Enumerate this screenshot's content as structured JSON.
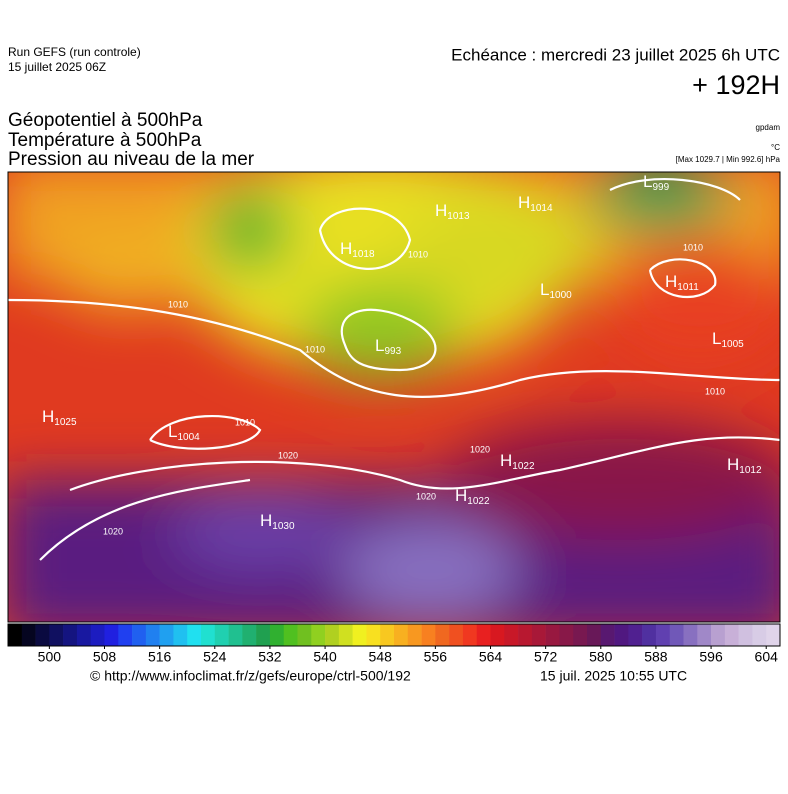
{
  "header": {
    "run": "Run GEFS (run controle)",
    "run_date": "15 juillet 2025 06Z",
    "valid": "Echéance : mercredi 23 juillet 2025 6h UTC",
    "lead": "+ 192H",
    "fields": [
      "Géopotentiel à 500hPa",
      "Température à 500hPa",
      "Pression au niveau de la mer"
    ],
    "units": [
      "gpdam",
      "°C",
      "[Max 1029.7 | Min 992.6] hPa"
    ]
  },
  "map": {
    "centers": [
      {
        "letter": "H",
        "value": "1013"
      },
      {
        "letter": "H",
        "value": "1014"
      },
      {
        "letter": "L",
        "value": "999"
      },
      {
        "letter": "H",
        "value": "1018"
      },
      {
        "letter": "L",
        "value": "993"
      },
      {
        "letter": "H",
        "value": "1011"
      },
      {
        "letter": "L",
        "value": "1005"
      },
      {
        "letter": "L",
        "value": "1004"
      },
      {
        "letter": "H",
        "value": "1025"
      },
      {
        "letter": "H",
        "value": "1022"
      },
      {
        "letter": "H",
        "value": "1022"
      },
      {
        "letter": "H",
        "value": "1030"
      },
      {
        "letter": "H",
        "value": "1012"
      },
      {
        "letter": "L",
        "value": "1000"
      }
    ],
    "contour_labels": [
      "1010",
      "1010",
      "1010",
      "1020",
      "1020",
      "1020",
      "1020",
      "1010",
      "1010",
      "1010"
    ]
  },
  "colorbar": {
    "range": [
      494,
      606
    ],
    "ticks": [
      500,
      508,
      516,
      524,
      532,
      540,
      548,
      556,
      564,
      572,
      580,
      588,
      596,
      604
    ],
    "colors": [
      "#000000",
      "#050520",
      "#0a0a40",
      "#101060",
      "#141480",
      "#1818a0",
      "#1c1cc0",
      "#2020e0",
      "#2040f0",
      "#2060f0",
      "#2080f0",
      "#20a0f0",
      "#20c0f0",
      "#20e0f0",
      "#20e0d0",
      "#20d0b0",
      "#20c090",
      "#20b070",
      "#20a050",
      "#30b030",
      "#50c020",
      "#70c020",
      "#90d020",
      "#b0d020",
      "#d0e020",
      "#f0f020",
      "#f8e020",
      "#f8c820",
      "#f8b020",
      "#f89820",
      "#f88020",
      "#f06820",
      "#f05020",
      "#f03820",
      "#e82020",
      "#d81820",
      "#c81828",
      "#b81830",
      "#a81838",
      "#981840",
      "#881848",
      "#781850",
      "#681858",
      "#581870",
      "#501880",
      "#502090",
      "#5030a0",
      "#6040b0",
      "#7058b8",
      "#8870c0",
      "#a088c8",
      "#b8a0d0",
      "#c8b0d8",
      "#d0c0e0",
      "#d8cce6",
      "#e0d4ea"
    ]
  },
  "footer": {
    "url": "© http://www.infoclimat.fr/z/gefs/europe/ctrl-500/192",
    "issued": "15 juil. 2025 10:55 UTC"
  }
}
